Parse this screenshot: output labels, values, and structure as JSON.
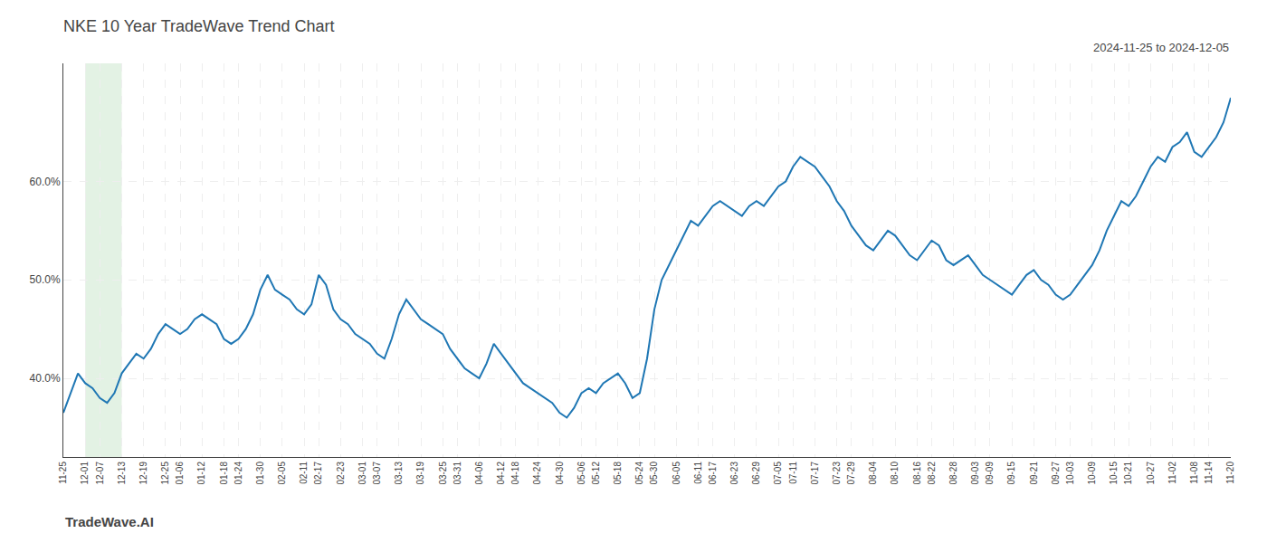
{
  "chart_data": {
    "type": "line",
    "title": "NKE 10 Year TradeWave Trend Chart",
    "subtitle": "2024-11-25 to 2024-12-05",
    "annotations": [
      "TradeWave.AI"
    ],
    "categories": [
      "11-25",
      null,
      null,
      "12-01",
      null,
      "12-07",
      null,
      null,
      "12-13",
      null,
      null,
      "12-19",
      null,
      null,
      "12-25",
      null,
      "01-06",
      null,
      null,
      "01-12",
      null,
      null,
      "01-18",
      null,
      "01-24",
      null,
      null,
      "01-30",
      null,
      null,
      "02-05",
      null,
      null,
      "02-11",
      null,
      "02-17",
      null,
      null,
      "02-23",
      null,
      null,
      "03-01",
      null,
      "03-07",
      null,
      null,
      "03-13",
      null,
      null,
      "03-19",
      null,
      null,
      "03-25",
      null,
      "03-31",
      null,
      null,
      "04-06",
      null,
      null,
      "04-12",
      null,
      "04-18",
      null,
      null,
      "04-24",
      null,
      null,
      "04-30",
      null,
      null,
      "05-06",
      null,
      "05-12",
      null,
      null,
      "05-18",
      null,
      null,
      "05-24",
      null,
      "05-30",
      null,
      null,
      "06-05",
      null,
      null,
      "06-11",
      null,
      "06-17",
      null,
      null,
      "06-23",
      null,
      null,
      "06-29",
      null,
      null,
      "07-05",
      null,
      "07-11",
      null,
      null,
      "07-17",
      null,
      null,
      "07-23",
      null,
      "07-29",
      null,
      null,
      "08-04",
      null,
      null,
      "08-10",
      null,
      null,
      "08-16",
      null,
      "08-22",
      null,
      null,
      "08-28",
      null,
      null,
      "09-03",
      null,
      "09-09",
      null,
      null,
      "09-15",
      null,
      null,
      "09-21",
      null,
      null,
      "09-27",
      null,
      "10-03",
      null,
      null,
      "10-09",
      null,
      null,
      "10-15",
      null,
      "10-21",
      null,
      null,
      "10-27",
      null,
      null,
      "11-02",
      null,
      null,
      "11-08",
      null,
      "11-14",
      null,
      null,
      "11-20"
    ],
    "values": [
      36.5,
      38.5,
      40.5,
      39.5,
      39.0,
      38.0,
      37.5,
      38.5,
      40.5,
      41.5,
      42.5,
      42.0,
      43.0,
      44.5,
      45.5,
      45.0,
      44.5,
      45.0,
      46.0,
      46.5,
      46.0,
      45.5,
      44.0,
      43.5,
      44.0,
      45.0,
      46.5,
      49.0,
      50.5,
      49.0,
      48.5,
      48.0,
      47.0,
      46.5,
      47.5,
      50.5,
      49.5,
      47.0,
      46.0,
      45.5,
      44.5,
      44.0,
      43.5,
      42.5,
      42.0,
      44.0,
      46.5,
      48.0,
      47.0,
      46.0,
      45.5,
      45.0,
      44.5,
      43.0,
      42.0,
      41.0,
      40.5,
      40.0,
      41.5,
      43.5,
      42.5,
      41.5,
      40.5,
      39.5,
      39.0,
      38.5,
      38.0,
      37.5,
      36.5,
      36.0,
      37.0,
      38.5,
      39.0,
      38.5,
      39.5,
      40.0,
      40.5,
      39.5,
      38.0,
      38.5,
      42.0,
      47.0,
      50.0,
      51.5,
      53.0,
      54.5,
      56.0,
      55.5,
      56.5,
      57.5,
      58.0,
      57.5,
      57.0,
      56.5,
      57.5,
      58.0,
      57.5,
      58.5,
      59.5,
      60.0,
      61.5,
      62.5,
      62.0,
      61.5,
      60.5,
      59.5,
      58.0,
      57.0,
      55.5,
      54.5,
      53.5,
      53.0,
      54.0,
      55.0,
      54.5,
      53.5,
      52.5,
      52.0,
      53.0,
      54.0,
      53.5,
      52.0,
      51.5,
      52.0,
      52.5,
      51.5,
      50.5,
      50.0,
      49.5,
      49.0,
      48.5,
      49.5,
      50.5,
      51.0,
      50.0,
      49.5,
      48.5,
      48.0,
      48.5,
      49.5,
      50.5,
      51.5,
      53.0,
      55.0,
      56.5,
      58.0,
      57.5,
      58.5,
      60.0,
      61.5,
      62.5,
      62.0,
      63.5,
      64.0,
      65.0,
      63.0,
      62.5,
      63.5,
      64.5,
      66.0,
      68.5
    ],
    "ylim": [
      32,
      72
    ],
    "yticks": [
      {
        "value": 40,
        "label": "40.0%"
      },
      {
        "value": 50,
        "label": "50.0%"
      },
      {
        "value": 60,
        "label": "60.0%"
      }
    ],
    "grid": true,
    "highlight": {
      "from": "12-01",
      "to": "12-13",
      "color": "#c8e6c9"
    }
  }
}
